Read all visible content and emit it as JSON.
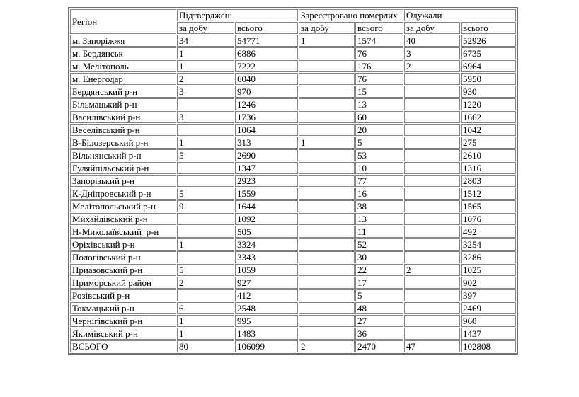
{
  "colors": {
    "background": "#ffffff",
    "text": "#000000",
    "border": "#848484"
  },
  "table": {
    "header": {
      "region": "Регіон",
      "groups": [
        {
          "label": "Підтверджені"
        },
        {
          "label": "Зареєстровано померлих"
        },
        {
          "label": "Одужали"
        }
      ],
      "sub_labels": [
        "за добу",
        "всього",
        "за добу",
        "всього",
        "за добу",
        "всього"
      ]
    },
    "rows": [
      [
        "м. Запоріжжя",
        "34",
        "54771",
        "1",
        "1574",
        "40",
        "52926"
      ],
      [
        "м. Бердянськ",
        "1",
        "6886",
        "",
        "76",
        "3",
        "6735"
      ],
      [
        "м. Мелітополь",
        "1",
        "7222",
        "",
        "176",
        "2",
        "6964"
      ],
      [
        "м. Енергодар",
        "2",
        "6040",
        "",
        "76",
        "",
        "5950"
      ],
      [
        "Бердянський р-н",
        "3",
        "970",
        "",
        "15",
        "",
        "930"
      ],
      [
        "Більмацький р-н",
        "",
        "1246",
        "",
        "13",
        "",
        "1220"
      ],
      [
        "Василівський р-н",
        "3",
        "1736",
        "",
        "60",
        "",
        "1662"
      ],
      [
        "Веселівський р-н",
        "",
        "1064",
        "",
        "20",
        "",
        "1042"
      ],
      [
        "В-Білозерський р-н",
        "1",
        "313",
        "1",
        "5",
        "",
        "275"
      ],
      [
        "Вільнянський р-н",
        "5",
        "2690",
        "",
        "53",
        "",
        "2610"
      ],
      [
        "Гуляйпільський р-н",
        "",
        "1347",
        "",
        "10",
        "",
        "1316"
      ],
      [
        "Запорізький р-н",
        "",
        "2923",
        "",
        "77",
        "",
        "2803"
      ],
      [
        "К-Дніпровський р-н",
        "5",
        "1559",
        "",
        "16",
        "",
        "1512"
      ],
      [
        "Мелітопольський р-н",
        "9",
        "1644",
        "",
        "38",
        "",
        "1565"
      ],
      [
        "Михайлівський р-н",
        "",
        "1092",
        "",
        "13",
        "",
        "1076"
      ],
      [
        "Н-Миколаївський  р-н",
        "",
        "505",
        "",
        "11",
        "",
        "492"
      ],
      [
        "Оріхівський р-н",
        "1",
        "3324",
        "",
        "52",
        "",
        "3254"
      ],
      [
        "Пологівський р-н",
        "",
        "3343",
        "",
        "30",
        "",
        "3286"
      ],
      [
        "Приазовський р-н",
        "5",
        "1059",
        "",
        "22",
        "2",
        "1025"
      ],
      [
        "Приморський район",
        "2",
        "927",
        "",
        "17",
        "",
        "902"
      ],
      [
        "Розівський р-н",
        "",
        "412",
        "",
        "5",
        "",
        "397"
      ],
      [
        "Токмацький р-н",
        "6",
        "2548",
        "",
        "48",
        "",
        "2469"
      ],
      [
        "Чернігівський р-н",
        "1",
        "995",
        "",
        "27",
        "",
        "960"
      ],
      [
        "Якимівський р-н",
        "1",
        "1483",
        "",
        "36",
        "",
        "1437"
      ],
      [
        "ВСЬОГО",
        "80",
        "106099",
        "2",
        "2470",
        "47",
        "102808"
      ]
    ]
  }
}
